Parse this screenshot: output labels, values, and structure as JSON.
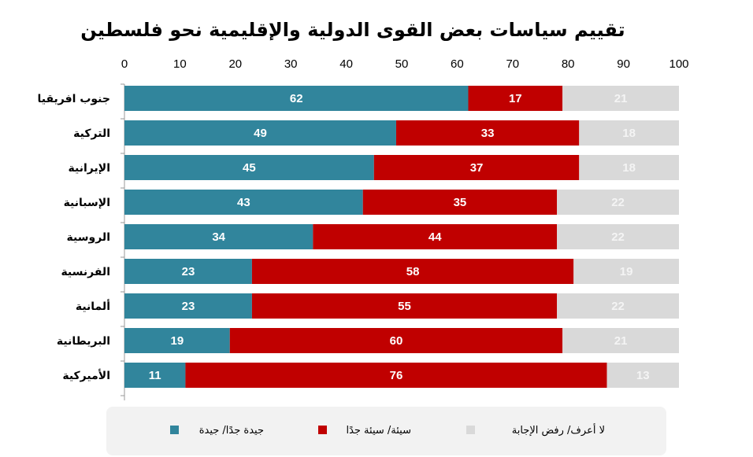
{
  "chart_data": {
    "type": "bar",
    "orientation": "horizontal",
    "stacked": true,
    "title": "تقييم سياسات بعض القوى الدولية والإقليمية نحو فلسطين",
    "xlim": [
      0,
      100
    ],
    "xticks": [
      0,
      10,
      20,
      30,
      40,
      50,
      60,
      70,
      80,
      90,
      100
    ],
    "xaxis_position": "top",
    "grid": false,
    "legend_position": "bottom",
    "categories": [
      "جنوب افريقيا",
      "التركية",
      "الإيرانية",
      "الإسبانية",
      "الروسية",
      "الفرنسية",
      "ألمانية",
      "البريطانية",
      "الأميركية"
    ],
    "series": [
      {
        "name": "جيدة جدًا/ جيدة",
        "color": "#31859c",
        "label_color": "#ffffff",
        "values": [
          62,
          49,
          45,
          43,
          34,
          23,
          23,
          19,
          11
        ]
      },
      {
        "name": "سيئة/ سيئة جدًا",
        "color": "#c00000",
        "label_color": "#ffffff",
        "values": [
          17,
          33,
          37,
          35,
          44,
          58,
          55,
          60,
          76
        ]
      },
      {
        "name": "لا أعرف/ رفض الإجابة",
        "color": "#d9d9d9",
        "label_color": "#f4f4f4",
        "values": [
          21,
          18,
          18,
          22,
          22,
          19,
          22,
          21,
          13
        ]
      }
    ]
  }
}
